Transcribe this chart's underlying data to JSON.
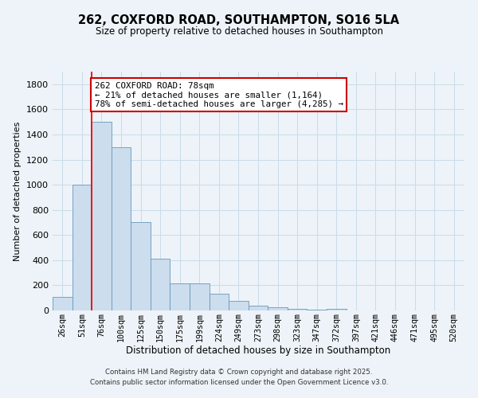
{
  "title": "262, COXFORD ROAD, SOUTHAMPTON, SO16 5LA",
  "subtitle": "Size of property relative to detached houses in Southampton",
  "xlabel": "Distribution of detached houses by size in Southampton",
  "ylabel": "Number of detached properties",
  "categories": [
    "26sqm",
    "51sqm",
    "76sqm",
    "100sqm",
    "125sqm",
    "150sqm",
    "175sqm",
    "199sqm",
    "224sqm",
    "249sqm",
    "273sqm",
    "298sqm",
    "323sqm",
    "347sqm",
    "372sqm",
    "397sqm",
    "421sqm",
    "446sqm",
    "471sqm",
    "495sqm",
    "520sqm"
  ],
  "bar_heights": [
    105,
    1000,
    1500,
    1300,
    700,
    410,
    215,
    215,
    135,
    75,
    40,
    28,
    10,
    5,
    15,
    0,
    0,
    0,
    0,
    0,
    0
  ],
  "bar_color": "#ccdded",
  "bar_edge_color": "#6699bb",
  "red_line_index": 2,
  "annotation_title": "262 COXFORD ROAD: 78sqm",
  "annotation_line1": "← 21% of detached houses are smaller (1,164)",
  "annotation_line2": "78% of semi-detached houses are larger (4,285) →",
  "annotation_box_facecolor": "#ffffff",
  "annotation_box_edgecolor": "#cc0000",
  "ylim": [
    0,
    1900
  ],
  "yticks": [
    0,
    200,
    400,
    600,
    800,
    1000,
    1200,
    1400,
    1600,
    1800
  ],
  "grid_color": "#c8dce8",
  "bg_color": "#edf3f8",
  "footer1": "Contains HM Land Registry data © Crown copyright and database right 2025.",
  "footer2": "Contains public sector information licensed under the Open Government Licence v3.0."
}
